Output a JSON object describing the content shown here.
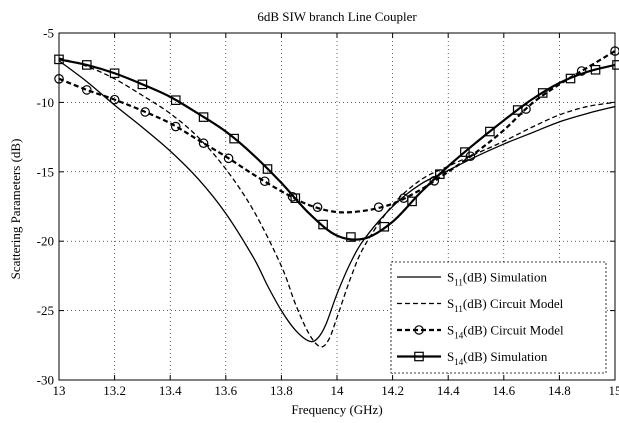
{
  "chart_data": {
    "type": "line",
    "title": "6dB SIW branch Line Coupler",
    "xlabel": "Frequency (GHz)",
    "ylabel": "Scattering Parameters (dB)",
    "xlim": [
      13,
      15
    ],
    "ylim": [
      -30,
      -5
    ],
    "xticks": [
      13,
      13.2,
      13.4,
      13.6,
      13.8,
      14,
      14.2,
      14.4,
      14.6,
      14.8,
      15
    ],
    "xtick_labels": [
      "13",
      "13.2",
      "13.4",
      "13.6",
      "13.8",
      "14",
      "14.2",
      "14.4",
      "14.6",
      "14.8",
      "15"
    ],
    "yticks": [
      -30,
      -25,
      -20,
      -15,
      -10,
      -5
    ],
    "ytick_labels": [
      "-30",
      "-25",
      "-20",
      "-15",
      "-10",
      "-5"
    ],
    "grid": "dotted vertical at x ticks",
    "legend_position": "bottom-right",
    "series": [
      {
        "name": "S11(dB) Simulation",
        "legend": {
          "main": "S",
          "sub": "11",
          "rest": "(dB) Simulation"
        },
        "style": "solid",
        "width": 1.3,
        "marker": "none",
        "x": [
          13,
          13.1,
          13.2,
          13.3,
          13.4,
          13.5,
          13.6,
          13.7,
          13.75,
          13.8,
          13.85,
          13.9,
          13.93,
          13.96,
          14,
          14.05,
          14.1,
          14.2,
          14.3,
          14.4,
          14.5,
          14.6,
          14.7,
          14.8,
          14.9,
          15
        ],
        "y": [
          -7.0,
          -8.5,
          -10.2,
          -11.8,
          -13.5,
          -15.5,
          -18.0,
          -21.2,
          -23.2,
          -25.0,
          -26.4,
          -27.2,
          -27.0,
          -26.0,
          -23.8,
          -21.5,
          -19.8,
          -17.5,
          -15.9,
          -14.9,
          -13.9,
          -13.0,
          -12.2,
          -11.4,
          -10.8,
          -10.3
        ]
      },
      {
        "name": "S11(dB) Circuit Model",
        "legend": {
          "main": "S",
          "sub": "11",
          "rest": "(dB) Circuit Model"
        },
        "style": "dashed",
        "width": 1.3,
        "marker": "none",
        "x": [
          13,
          13.1,
          13.2,
          13.3,
          13.4,
          13.5,
          13.6,
          13.7,
          13.8,
          13.85,
          13.9,
          13.94,
          13.97,
          14,
          14.05,
          14.1,
          14.2,
          14.3,
          14.4,
          14.5,
          14.6,
          14.7,
          14.8,
          14.9,
          15
        ],
        "y": [
          -6.8,
          -7.4,
          -8.3,
          -9.5,
          -10.8,
          -12.5,
          -14.8,
          -17.8,
          -21.8,
          -24.5,
          -26.7,
          -27.6,
          -27.1,
          -25.5,
          -22.6,
          -20.3,
          -17.4,
          -15.6,
          -14.6,
          -13.7,
          -12.8,
          -11.8,
          -10.9,
          -10.3,
          -10.0
        ]
      },
      {
        "name": "S14(dB) Circuit Model",
        "legend": {
          "main": "S",
          "sub": "14",
          "rest": "(dB) Circuit Model"
        },
        "style": "dashed",
        "width": 2.2,
        "marker": "circle",
        "x": [
          13,
          13.1,
          13.2,
          13.3,
          13.4,
          13.5,
          13.6,
          13.7,
          13.8,
          13.9,
          14,
          14.1,
          14.2,
          14.3,
          14.4,
          14.5,
          14.6,
          14.7,
          14.8,
          14.9,
          15
        ],
        "y": [
          -8.3,
          -9.1,
          -9.8,
          -10.6,
          -11.5,
          -12.7,
          -13.9,
          -15.2,
          -16.4,
          -17.4,
          -17.9,
          -17.8,
          -17.3,
          -16.3,
          -15.0,
          -13.6,
          -12.0,
          -10.1,
          -8.7,
          -7.5,
          -6.3
        ],
        "markers_x": [
          13,
          13.1,
          13.2,
          13.31,
          13.42,
          13.52,
          13.61,
          13.74,
          13.84,
          13.93,
          14.15,
          14.24,
          14.35,
          14.48,
          14.68,
          14.88,
          15
        ]
      },
      {
        "name": "S14(dB) Simulation",
        "legend": {
          "main": "S",
          "sub": "14",
          "rest": "(dB) Simulation"
        },
        "style": "solid",
        "width": 2.2,
        "marker": "square",
        "x": [
          13,
          13.1,
          13.2,
          13.3,
          13.4,
          13.5,
          13.6,
          13.7,
          13.8,
          13.9,
          14,
          14.1,
          14.2,
          14.3,
          14.4,
          14.5,
          14.6,
          14.7,
          14.8,
          14.9,
          15
        ],
        "y": [
          -6.9,
          -7.3,
          -7.9,
          -8.7,
          -9.6,
          -10.8,
          -12.1,
          -13.8,
          -15.8,
          -18.0,
          -19.6,
          -19.8,
          -18.6,
          -16.5,
          -14.6,
          -12.9,
          -11.3,
          -9.8,
          -8.6,
          -7.8,
          -7.3
        ],
        "markers_x": [
          13,
          13.1,
          13.2,
          13.3,
          13.42,
          13.52,
          13.63,
          13.75,
          13.85,
          13.95,
          14.05,
          14.17,
          14.27,
          14.37,
          14.46,
          14.55,
          14.65,
          14.74,
          14.84,
          14.93,
          15.02
        ]
      }
    ]
  }
}
